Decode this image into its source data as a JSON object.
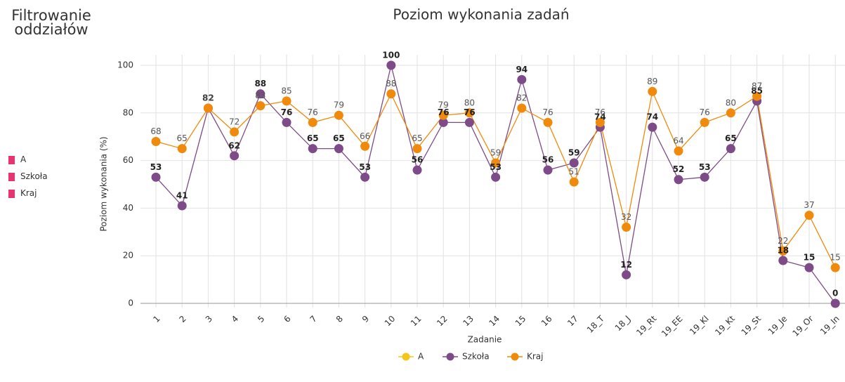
{
  "sidebar": {
    "title": "Filtrowanie oddziałów",
    "filters": [
      "A",
      "Szkoła",
      "Kraj"
    ]
  },
  "chart_data": {
    "type": "line",
    "title": "Poziom wykonania zadań",
    "x_label": "Zadanie",
    "y_label": "Poziom wykonania (%)",
    "categories": [
      "1",
      "2",
      "3",
      "4",
      "5",
      "6",
      "7",
      "8",
      "9",
      "10",
      "11",
      "12",
      "13",
      "14",
      "15",
      "16",
      "17",
      "18_T",
      "18_J",
      "19_Rt",
      "19_EE",
      "19_Kl",
      "19_Kt",
      "19_St",
      "19_Je",
      "19_Or",
      "19_In"
    ],
    "series": [
      {
        "name": "A",
        "color": "#f5c518",
        "values": [
          null,
          null,
          null,
          null,
          null,
          null,
          null,
          null,
          null,
          null,
          null,
          null,
          null,
          null,
          null,
          null,
          null,
          null,
          null,
          null,
          null,
          null,
          null,
          null,
          null,
          null,
          null
        ]
      },
      {
        "name": "Szkoła",
        "color": "#7d4b87",
        "values": [
          53,
          41,
          82,
          62,
          88,
          76,
          65,
          65,
          53,
          100,
          56,
          76,
          76,
          53,
          94,
          56,
          59,
          74,
          12,
          74,
          52,
          53,
          65,
          85,
          18,
          15,
          0
        ]
      },
      {
        "name": "Kraj",
        "color": "#f08a0c",
        "values": [
          68,
          65,
          82,
          72,
          83,
          85,
          76,
          79,
          66,
          88,
          65,
          79,
          80,
          59,
          82,
          76,
          51,
          76,
          32,
          89,
          64,
          76,
          80,
          87,
          22,
          37,
          15
        ]
      }
    ],
    "ylim": [
      0,
      100
    ],
    "yticks": [
      0,
      20,
      40,
      60,
      80,
      100
    ],
    "grid": true,
    "legend": "bottom"
  }
}
